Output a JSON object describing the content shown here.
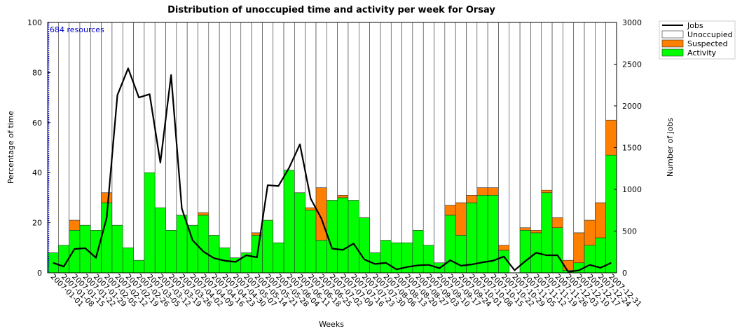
{
  "chart_data": {
    "type": "bar",
    "title": "Distribution of unoccupied time and activity per week for Orsay",
    "x_label": "Weeks",
    "y_label": "Percentage of time",
    "y2_label": "Number of jobs",
    "annotation": "684 resources",
    "annotation_color": "#0000cc",
    "stacked": true,
    "categories": [
      "2007-01-01",
      "2007-01-08",
      "2007-01-15",
      "2007-01-22",
      "2007-01-29",
      "2007-02-05",
      "2007-02-12",
      "2007-02-19",
      "2007-02-26",
      "2007-03-05",
      "2007-03-12",
      "2007-03-19",
      "2007-03-26",
      "2007-04-02",
      "2007-04-09",
      "2007-04-16",
      "2007-04-23",
      "2007-04-30",
      "2007-05-07",
      "2007-05-14",
      "2007-05-21",
      "2007-05-28",
      "2007-06-04",
      "2007-06-11",
      "2007-06-18",
      "2007-06-25",
      "2007-07-02",
      "2007-07-09",
      "2007-07-16",
      "2007-07-23",
      "2007-07-30",
      "2007-08-06",
      "2007-08-13",
      "2007-08-20",
      "2007-08-27",
      "2007-09-03",
      "2007-09-10",
      "2007-09-17",
      "2007-09-24",
      "2007-10-01",
      "2007-10-08",
      "2007-10-15",
      "2007-10-22",
      "2007-10-29",
      "2007-11-05",
      "2007-11-12",
      "2007-11-19",
      "2007-11-26",
      "2007-12-03",
      "2007-12-10",
      "2007-12-17",
      "2007-12-24",
      "2007-12-31"
    ],
    "series": [
      {
        "name": "Jobs",
        "type": "line",
        "axis": "y2",
        "color": "#000000",
        "values": [
          120,
          75,
          285,
          295,
          180,
          660,
          2130,
          2450,
          2100,
          2140,
          1320,
          2370,
          770,
          390,
          255,
          175,
          145,
          130,
          210,
          185,
          1050,
          1040,
          1260,
          1540,
          890,
          650,
          290,
          275,
          350,
          160,
          105,
          120,
          40,
          70,
          90,
          95,
          55,
          150,
          85,
          100,
          125,
          145,
          195,
          30,
          140,
          240,
          210,
          210,
          10,
          30,
          95,
          60,
          120
        ]
      },
      {
        "name": "Unoccupied",
        "color": "#ffffff",
        "values": [
          92,
          89,
          79,
          81,
          83,
          68,
          81,
          90,
          95,
          60,
          74,
          83,
          77,
          81,
          76,
          85,
          90,
          94,
          92,
          84,
          79,
          88,
          59,
          68,
          74,
          66,
          71,
          69,
          71,
          78,
          92,
          87,
          88,
          88,
          83,
          89,
          96,
          73,
          72,
          69,
          66,
          66,
          89,
          100,
          82,
          83,
          67,
          78,
          95,
          84,
          79,
          72,
          39
        ]
      },
      {
        "name": "Suspected",
        "color": "#ff7f00",
        "values": [
          0,
          0,
          4,
          0,
          0,
          4,
          0,
          0,
          0,
          0,
          0,
          0,
          0,
          0,
          1,
          0,
          0,
          0,
          0,
          1,
          0,
          0,
          0,
          0,
          1,
          21,
          0,
          1,
          0,
          0,
          0,
          0,
          0,
          0,
          0,
          0,
          0,
          4,
          13,
          3,
          3,
          3,
          2,
          0,
          1,
          1,
          1,
          4,
          4,
          12,
          10,
          14,
          14
        ]
      },
      {
        "name": "Activity",
        "color": "#00ff00",
        "values": [
          8,
          11,
          17,
          19,
          17,
          28,
          19,
          10,
          5,
          40,
          26,
          17,
          23,
          19,
          23,
          15,
          10,
          6,
          8,
          15,
          21,
          12,
          41,
          32,
          25,
          13,
          29,
          30,
          29,
          22,
          8,
          13,
          12,
          12,
          17,
          11,
          4,
          23,
          15,
          28,
          31,
          31,
          9,
          0,
          17,
          16,
          32,
          18,
          1,
          4,
          11,
          14,
          47
        ]
      }
    ],
    "ylim": [
      0,
      100
    ],
    "yticks": [
      0,
      20,
      40,
      60,
      80,
      100
    ],
    "y2lim": [
      0,
      3000
    ],
    "y2ticks": [
      0,
      500,
      1000,
      1500,
      2000,
      2500,
      3000
    ]
  }
}
